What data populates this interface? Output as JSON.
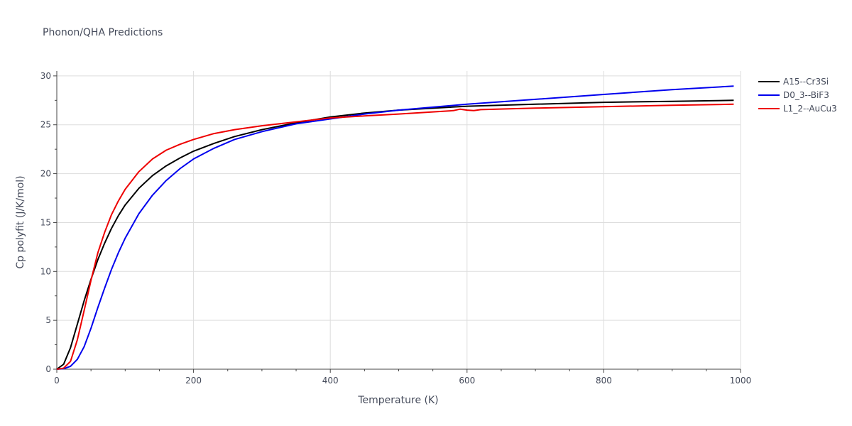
{
  "chart_data": {
    "type": "line",
    "title": "Phonon/QHA Predictions",
    "xlabel": "Temperature (K)",
    "ylabel": "Cp polyfit (J/K/mol)",
    "xlim": [
      0,
      1000
    ],
    "ylim": [
      0,
      30.5
    ],
    "x_ticks": [
      0,
      200,
      400,
      600,
      800,
      1000
    ],
    "y_ticks": [
      0,
      5,
      10,
      15,
      20,
      25,
      30
    ],
    "grid": true,
    "legend_position": "top-right",
    "series": [
      {
        "name": "A15--Cr3Si",
        "color": "#000000",
        "x": [
          0,
          10,
          20,
          30,
          40,
          50,
          60,
          70,
          80,
          90,
          100,
          120,
          140,
          160,
          180,
          200,
          230,
          260,
          300,
          350,
          400,
          450,
          500,
          600,
          700,
          800,
          900,
          990
        ],
        "y": [
          0,
          0.5,
          2.2,
          4.6,
          7.0,
          9.2,
          11.2,
          12.9,
          14.4,
          15.7,
          16.8,
          18.5,
          19.8,
          20.8,
          21.6,
          22.3,
          23.1,
          23.8,
          24.5,
          25.2,
          25.8,
          26.2,
          26.5,
          26.9,
          27.1,
          27.3,
          27.4,
          27.5
        ]
      },
      {
        "name": "D0_3--BiF3",
        "color": "#0000ee",
        "x": [
          0,
          10,
          20,
          30,
          40,
          50,
          60,
          70,
          80,
          90,
          100,
          120,
          140,
          160,
          180,
          200,
          230,
          260,
          300,
          350,
          400,
          450,
          500,
          600,
          700,
          800,
          900,
          990
        ],
        "y": [
          0,
          0.05,
          0.3,
          1.0,
          2.3,
          4.2,
          6.3,
          8.3,
          10.2,
          11.9,
          13.4,
          15.9,
          17.8,
          19.3,
          20.5,
          21.5,
          22.6,
          23.5,
          24.3,
          25.1,
          25.6,
          26.1,
          26.5,
          27.1,
          27.6,
          28.1,
          28.6,
          28.95
        ]
      },
      {
        "name": "L1_2--AuCu3",
        "color": "#ee0000",
        "x": [
          0,
          10,
          20,
          30,
          40,
          50,
          60,
          70,
          80,
          90,
          100,
          120,
          140,
          160,
          180,
          200,
          230,
          260,
          300,
          350,
          400,
          450,
          500,
          580,
          590,
          600,
          610,
          620,
          700,
          800,
          900,
          990
        ],
        "y": [
          0,
          0.1,
          0.8,
          3.0,
          6.0,
          9.1,
          11.9,
          14.0,
          15.8,
          17.2,
          18.4,
          20.2,
          21.5,
          22.4,
          23.0,
          23.5,
          24.1,
          24.5,
          24.9,
          25.3,
          25.7,
          25.9,
          26.1,
          26.45,
          26.6,
          26.5,
          26.45,
          26.55,
          26.7,
          26.85,
          27.0,
          27.1
        ]
      }
    ]
  }
}
